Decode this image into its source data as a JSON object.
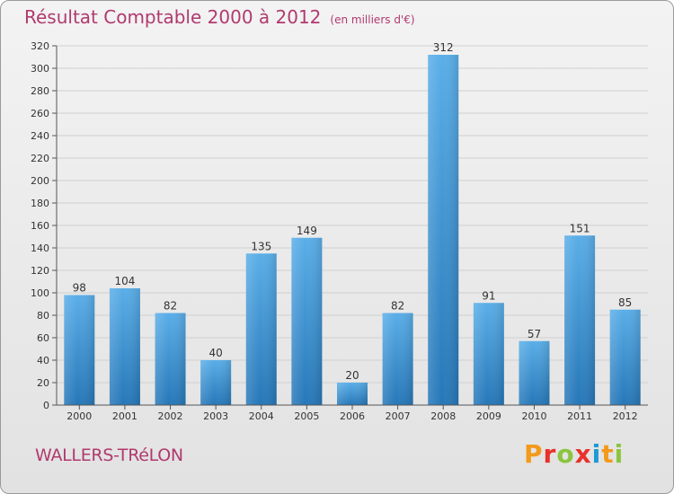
{
  "header": {
    "title": "Résultat Comptable 2000 à 2012",
    "unit": "(en milliers d'€)"
  },
  "footer": {
    "place": "WALLERS-TRéLON",
    "logo_text": "Proxiti"
  },
  "colors": {
    "bar_top": "#5aaee8",
    "bar_bottom": "#2677b8",
    "title": "#b03a6e",
    "logo": [
      "#f29a1c",
      "#e8312a",
      "#8bc53f",
      "#e8312a",
      "#1b9ad6",
      "#f29a1c",
      "#8bc53f"
    ]
  },
  "chart_data": {
    "type": "bar",
    "title": "Résultat Comptable 2000 à 2012",
    "xlabel": "",
    "ylabel": "",
    "categories": [
      "2000",
      "2001",
      "2002",
      "2003",
      "2004",
      "2005",
      "2006",
      "2007",
      "2008",
      "2009",
      "2010",
      "2011",
      "2012"
    ],
    "values": [
      98,
      104,
      82,
      40,
      135,
      149,
      20,
      82,
      312,
      91,
      57,
      151,
      85
    ],
    "ylim": [
      0,
      320
    ],
    "yticks": [
      0,
      20,
      40,
      60,
      80,
      100,
      120,
      140,
      160,
      180,
      200,
      220,
      240,
      260,
      280,
      300,
      320
    ],
    "grid": true,
    "legend": "none"
  }
}
